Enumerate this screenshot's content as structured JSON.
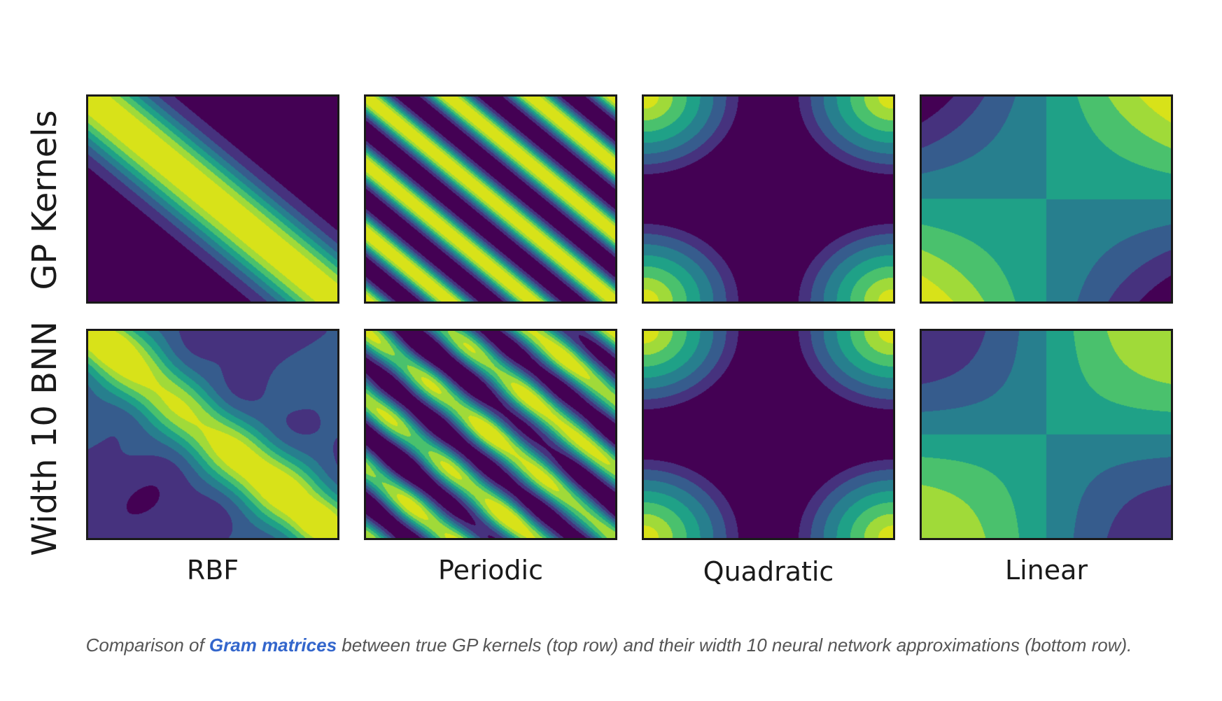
{
  "chart_data": {
    "type": "heatmap",
    "title": "",
    "row_labels": [
      "GP Kernels",
      "Width 10 BNN"
    ],
    "column_labels": [
      "RBF",
      "Periodic",
      "Quadratic",
      "Linear"
    ],
    "colormap": "viridis",
    "contour_levels": 7,
    "palette": [
      "#440154",
      "#46327e",
      "#365c8d",
      "#277f8e",
      "#1fa187",
      "#4ac16d",
      "#a0da39",
      "#d8e219"
    ],
    "panels": [
      {
        "row": 0,
        "col": 0,
        "kernel": "rbf",
        "approximation": false
      },
      {
        "row": 0,
        "col": 1,
        "kernel": "periodic",
        "approximation": false
      },
      {
        "row": 0,
        "col": 2,
        "kernel": "quadratic",
        "approximation": false
      },
      {
        "row": 0,
        "col": 3,
        "kernel": "linear",
        "approximation": false
      },
      {
        "row": 1,
        "col": 0,
        "kernel": "rbf",
        "approximation": true
      },
      {
        "row": 1,
        "col": 1,
        "kernel": "periodic",
        "approximation": true
      },
      {
        "row": 1,
        "col": 2,
        "kernel": "quadratic",
        "approximation": true
      },
      {
        "row": 1,
        "col": 3,
        "kernel": "linear",
        "approximation": true
      }
    ]
  },
  "caption": {
    "prefix": "Comparison of ",
    "link_text": "Gram matrices",
    "suffix": " between true GP kernels (top row) and their width 10 neural network approximations (bottom row)."
  }
}
